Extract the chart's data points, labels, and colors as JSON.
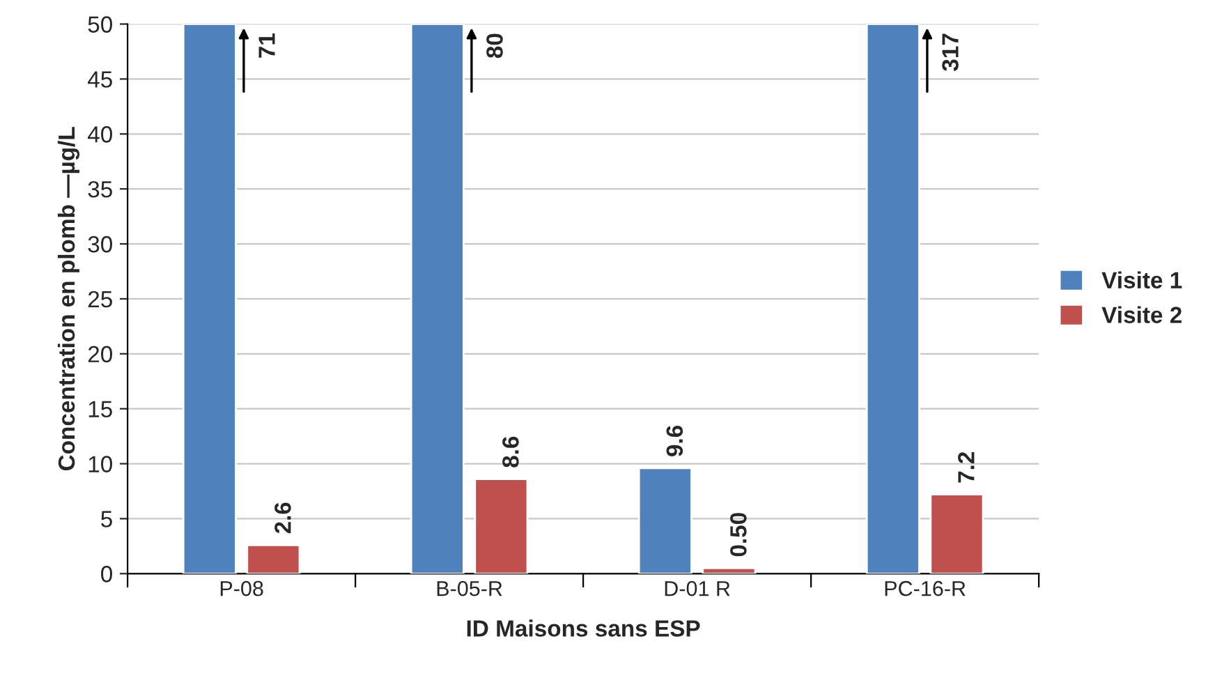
{
  "chart_data": {
    "type": "bar",
    "xlabel": "ID Maisons sans ESP",
    "ylabel": "Concentration en plomb —µg/L",
    "categories": [
      "P-08",
      "B-05-R",
      "D-01 R",
      "PC-16-R"
    ],
    "series": [
      {
        "name": "Visite 1",
        "color": "#4f81bd",
        "values": [
          50,
          50,
          9.6,
          50
        ],
        "value_labels": [
          null,
          null,
          "9.6",
          null
        ]
      },
      {
        "name": "Visite 2",
        "color": "#c0504d",
        "values": [
          2.6,
          8.6,
          0.5,
          7.2
        ],
        "value_labels": [
          "2.6",
          "8.6",
          "0.50",
          "7.2"
        ]
      }
    ],
    "annotations": [
      {
        "text": "71",
        "x": "P-08",
        "y": 50
      },
      {
        "text": "80",
        "x": "B-05-R",
        "y": 50
      },
      {
        "text": "317",
        "x": "PC-16-R",
        "y": 50
      }
    ],
    "ylim": [
      0,
      50
    ],
    "yticks": [
      0,
      5,
      10,
      15,
      20,
      25,
      30,
      35,
      40,
      45,
      50
    ],
    "grid": "y",
    "legend": "right"
  }
}
